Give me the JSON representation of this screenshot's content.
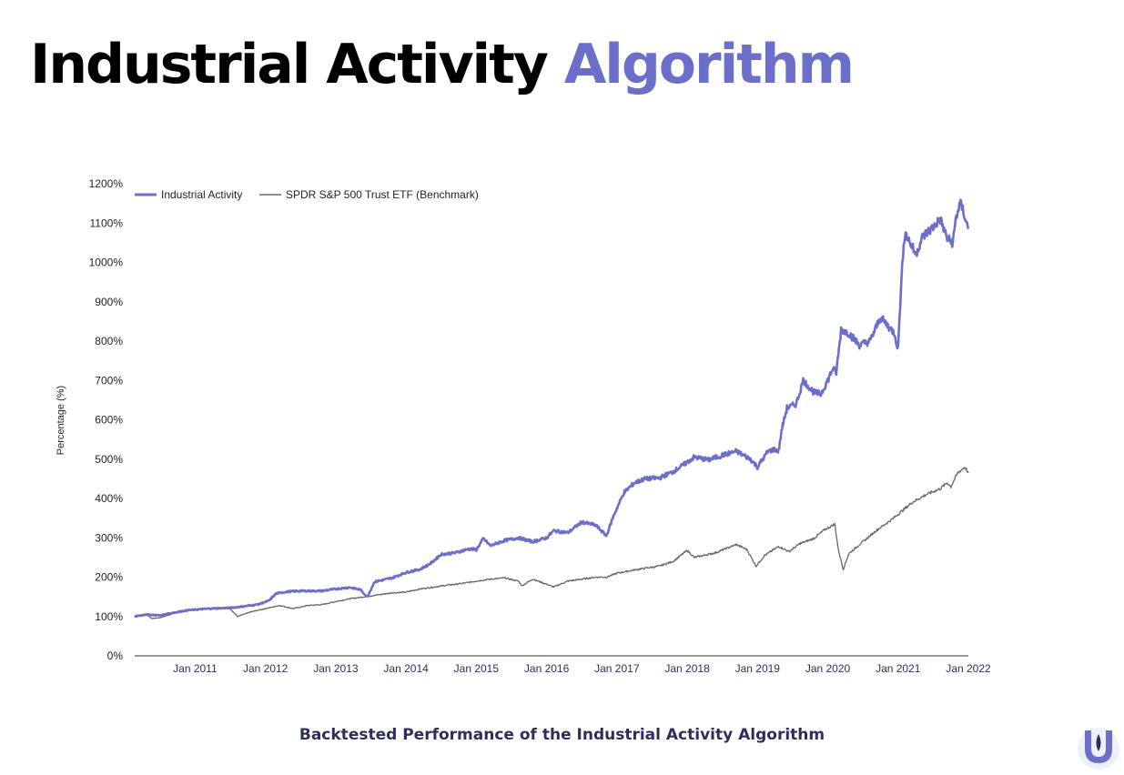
{
  "title": {
    "part1": "Industrial Activity",
    "part2": "Algorithm"
  },
  "caption": "Backtested Performance of the Industrial Activity Algorithm",
  "logo": {
    "icon": "u-shield-logo-icon"
  },
  "colors": {
    "accent": "#6b6fc9",
    "benchmark": "#666666",
    "title": "#000000",
    "caption": "#2e2e5c"
  },
  "chart_data": {
    "type": "line",
    "title": "",
    "xlabel": "",
    "ylabel": "Percentage (%)",
    "ylim": [
      0,
      1200
    ],
    "yticks": [
      0,
      100,
      200,
      300,
      400,
      500,
      600,
      700,
      800,
      900,
      1000,
      1100,
      1200
    ],
    "ytick_labels": [
      "0%",
      "100%",
      "200%",
      "300%",
      "400%",
      "500%",
      "600%",
      "700%",
      "800%",
      "900%",
      "1000%",
      "1100%",
      "1200%"
    ],
    "xlim": [
      2010.14,
      2022.0
    ],
    "xticks": [
      2011,
      2012,
      2013,
      2014,
      2015,
      2016,
      2017,
      2018,
      2019,
      2020,
      2021,
      2022
    ],
    "xtick_labels": [
      "Jan 2011",
      "Jan 2012",
      "Jan 2013",
      "Jan 2014",
      "Jan 2015",
      "Jan 2016",
      "Jan 2017",
      "Jan 2018",
      "Jan 2019",
      "Jan 2020",
      "Jan 2021",
      "Jan 2022"
    ],
    "legend": "top-left",
    "grid": false,
    "series": [
      {
        "name": "Industrial Activity",
        "color": "#6b6fc9",
        "points": [
          [
            2010.14,
            100
          ],
          [
            2010.3,
            105
          ],
          [
            2010.5,
            103
          ],
          [
            2010.7,
            110
          ],
          [
            2010.9,
            116
          ],
          [
            2011.2,
            120
          ],
          [
            2011.5,
            122
          ],
          [
            2011.7,
            126
          ],
          [
            2011.9,
            131
          ],
          [
            2012.05,
            140
          ],
          [
            2012.15,
            158
          ],
          [
            2012.3,
            163
          ],
          [
            2012.5,
            165
          ],
          [
            2012.8,
            165
          ],
          [
            2013.0,
            170
          ],
          [
            2013.2,
            174
          ],
          [
            2013.35,
            168
          ],
          [
            2013.45,
            150
          ],
          [
            2013.55,
            188
          ],
          [
            2013.8,
            198
          ],
          [
            2014.0,
            212
          ],
          [
            2014.2,
            220
          ],
          [
            2014.35,
            235
          ],
          [
            2014.5,
            258
          ],
          [
            2014.7,
            262
          ],
          [
            2014.9,
            272
          ],
          [
            2015.0,
            270
          ],
          [
            2015.1,
            298
          ],
          [
            2015.2,
            280
          ],
          [
            2015.4,
            293
          ],
          [
            2015.6,
            300
          ],
          [
            2015.8,
            290
          ],
          [
            2016.0,
            300
          ],
          [
            2016.1,
            318
          ],
          [
            2016.3,
            313
          ],
          [
            2016.5,
            340
          ],
          [
            2016.7,
            332
          ],
          [
            2016.85,
            305
          ],
          [
            2016.95,
            355
          ],
          [
            2017.1,
            415
          ],
          [
            2017.25,
            440
          ],
          [
            2017.4,
            450
          ],
          [
            2017.6,
            452
          ],
          [
            2017.8,
            468
          ],
          [
            2018.0,
            492
          ],
          [
            2018.1,
            505
          ],
          [
            2018.3,
            498
          ],
          [
            2018.5,
            510
          ],
          [
            2018.7,
            520
          ],
          [
            2018.9,
            500
          ],
          [
            2019.0,
            480
          ],
          [
            2019.15,
            520
          ],
          [
            2019.25,
            525
          ],
          [
            2019.3,
            520
          ],
          [
            2019.35,
            580
          ],
          [
            2019.42,
            630
          ],
          [
            2019.55,
            640
          ],
          [
            2019.65,
            700
          ],
          [
            2019.8,
            670
          ],
          [
            2019.9,
            665
          ],
          [
            2020.0,
            700
          ],
          [
            2020.07,
            730
          ],
          [
            2020.12,
            720
          ],
          [
            2020.16,
            780
          ],
          [
            2020.19,
            830
          ],
          [
            2020.3,
            820
          ],
          [
            2020.45,
            790
          ],
          [
            2020.6,
            800
          ],
          [
            2020.75,
            860
          ],
          [
            2020.9,
            830
          ],
          [
            2020.95,
            820
          ],
          [
            2021.0,
            780
          ],
          [
            2021.02,
            860
          ],
          [
            2021.05,
            960
          ],
          [
            2021.08,
            1050
          ],
          [
            2021.1,
            1075
          ],
          [
            2021.2,
            1040
          ],
          [
            2021.25,
            1020
          ],
          [
            2021.35,
            1065
          ],
          [
            2021.5,
            1090
          ],
          [
            2021.6,
            1110
          ],
          [
            2021.7,
            1060
          ],
          [
            2021.78,
            1050
          ],
          [
            2021.82,
            1110
          ],
          [
            2021.88,
            1150
          ],
          [
            2021.92,
            1135
          ],
          [
            2021.96,
            1110
          ],
          [
            2022.0,
            1085
          ]
        ]
      },
      {
        "name": "SPDR S&P 500 Trust ETF (Benchmark)",
        "color": "#666666",
        "points": [
          [
            2010.14,
            98
          ],
          [
            2010.3,
            107
          ],
          [
            2010.38,
            95
          ],
          [
            2010.5,
            97
          ],
          [
            2010.7,
            108
          ],
          [
            2010.9,
            115
          ],
          [
            2011.1,
            120
          ],
          [
            2011.3,
            122
          ],
          [
            2011.5,
            120
          ],
          [
            2011.6,
            100
          ],
          [
            2011.8,
            112
          ],
          [
            2012.0,
            120
          ],
          [
            2012.2,
            128
          ],
          [
            2012.4,
            120
          ],
          [
            2012.6,
            128
          ],
          [
            2012.8,
            130
          ],
          [
            2013.0,
            138
          ],
          [
            2013.2,
            145
          ],
          [
            2013.4,
            150
          ],
          [
            2013.6,
            155
          ],
          [
            2013.8,
            160
          ],
          [
            2014.0,
            162
          ],
          [
            2014.2,
            170
          ],
          [
            2014.4,
            175
          ],
          [
            2014.6,
            180
          ],
          [
            2014.8,
            184
          ],
          [
            2015.0,
            190
          ],
          [
            2015.2,
            195
          ],
          [
            2015.4,
            198
          ],
          [
            2015.6,
            190
          ],
          [
            2015.65,
            178
          ],
          [
            2015.8,
            195
          ],
          [
            2016.0,
            182
          ],
          [
            2016.1,
            175
          ],
          [
            2016.3,
            190
          ],
          [
            2016.5,
            195
          ],
          [
            2016.7,
            200
          ],
          [
            2016.85,
            200
          ],
          [
            2017.0,
            210
          ],
          [
            2017.3,
            220
          ],
          [
            2017.6,
            228
          ],
          [
            2017.8,
            240
          ],
          [
            2018.0,
            268
          ],
          [
            2018.1,
            250
          ],
          [
            2018.4,
            262
          ],
          [
            2018.7,
            283
          ],
          [
            2018.85,
            270
          ],
          [
            2018.98,
            228
          ],
          [
            2019.1,
            255
          ],
          [
            2019.3,
            278
          ],
          [
            2019.45,
            265
          ],
          [
            2019.6,
            285
          ],
          [
            2019.8,
            298
          ],
          [
            2019.95,
            320
          ],
          [
            2020.1,
            335
          ],
          [
            2020.15,
            270
          ],
          [
            2020.22,
            220
          ],
          [
            2020.3,
            260
          ],
          [
            2020.5,
            290
          ],
          [
            2020.7,
            320
          ],
          [
            2020.9,
            345
          ],
          [
            2021.0,
            360
          ],
          [
            2021.2,
            390
          ],
          [
            2021.4,
            410
          ],
          [
            2021.6,
            425
          ],
          [
            2021.7,
            440
          ],
          [
            2021.75,
            430
          ],
          [
            2021.85,
            465
          ],
          [
            2021.95,
            480
          ],
          [
            2022.0,
            465
          ]
        ]
      }
    ]
  }
}
